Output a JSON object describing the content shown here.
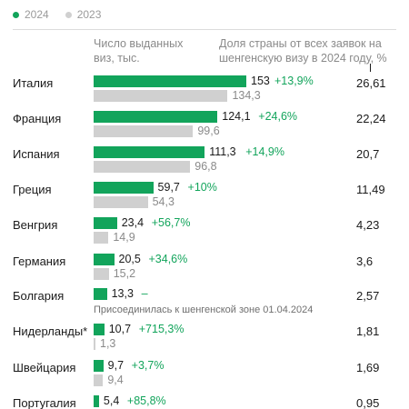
{
  "legend": [
    {
      "label": "2024",
      "color": "#12a45b"
    },
    {
      "label": "2023",
      "color": "#d0d0d0"
    }
  ],
  "headers": {
    "visas": "Число выданных виз, тыс.",
    "share": "Доля страны от всех заявок на шенгенскую визу в 2024 году, %"
  },
  "note": "Присоединилась к шенгенской зоне 01.04.2024",
  "colors": {
    "y2024": "#12a45b",
    "y2023": "#d0d0d0",
    "change": "#12a45b"
  },
  "chart_data": {
    "type": "bar",
    "orientation": "horizontal",
    "categories": [
      "Италия",
      "Франция",
      "Испания",
      "Греция",
      "Венгрия",
      "Германия",
      "Болгария",
      "Нидерланды*",
      "Швейцария",
      "Португалия"
    ],
    "series": [
      {
        "name": "2024",
        "values": [
          153,
          124.1,
          111.3,
          59.7,
          23.4,
          20.5,
          13.3,
          10.7,
          9.7,
          5.4
        ],
        "labels": [
          "153",
          "124,1",
          "111,3",
          "59,7",
          "23,4",
          "20,5",
          "13,3",
          "10,7",
          "9,7",
          "5,4"
        ]
      },
      {
        "name": "2023",
        "values": [
          134.3,
          99.6,
          96.8,
          54.3,
          14.9,
          15.2,
          null,
          1.3,
          9.4,
          null
        ],
        "labels": [
          "134,3",
          "99,6",
          "96,8",
          "54,3",
          "14,9",
          "15,2",
          "",
          "1,3",
          "9,4",
          ""
        ]
      }
    ],
    "change_labels": [
      "+13,9%",
      "+24,6%",
      "+14,9%",
      "+10%",
      "+56,7%",
      "+34,6%",
      "–",
      "+715,3%",
      "+3,7%",
      "+85,8%"
    ],
    "share_labels": [
      "26,61",
      "22,24",
      "20,7",
      "11,49",
      "4,23",
      "3,6",
      "2,57",
      "1,81",
      "1,69",
      "0,95"
    ],
    "xlim": [
      0,
      153
    ]
  }
}
